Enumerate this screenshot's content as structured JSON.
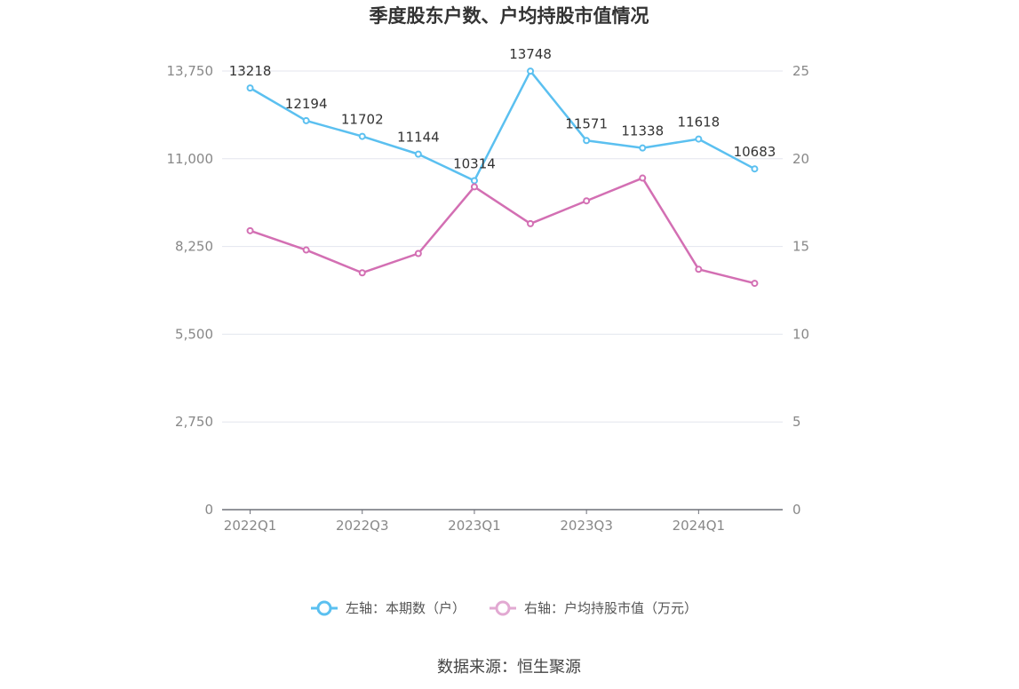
{
  "chart_data": {
    "type": "line",
    "title": "季度股东户数、户均持股市值情况",
    "categories": [
      "2022Q1",
      "2022Q2",
      "2022Q3",
      "2022Q4",
      "2023Q1",
      "2023Q2",
      "2023Q3",
      "2023Q4",
      "2024Q1",
      "2024Q2"
    ],
    "x_tick_labels": [
      "2022Q1",
      "2022Q3",
      "2023Q1",
      "2023Q3",
      "2024Q1"
    ],
    "series": [
      {
        "name": "左轴：本期数（户）",
        "axis": "left",
        "color": "#5bc0f0",
        "values": [
          13218,
          12194,
          11702,
          11144,
          10314,
          13748,
          11571,
          11338,
          11618,
          10683
        ],
        "data_labels": [
          "13218",
          "12194",
          "11702",
          "11144",
          "10314",
          "13748",
          "11571",
          "11338",
          "11618",
          "10683"
        ]
      },
      {
        "name": "右轴：户均持股市值（万元）",
        "axis": "right",
        "color": "#d36fb3",
        "values": [
          15.9,
          14.8,
          13.5,
          14.6,
          18.4,
          16.3,
          17.6,
          18.9,
          13.7,
          12.9
        ]
      }
    ],
    "left_axis": {
      "min": 0,
      "max": 13750,
      "ticks": [
        0,
        2750,
        5500,
        8250,
        11000,
        13750
      ],
      "tick_labels": [
        "0",
        "2,750",
        "5,500",
        "8,250",
        "11,000",
        "13,750"
      ]
    },
    "right_axis": {
      "min": 0,
      "max": 25,
      "ticks": [
        0,
        5,
        10,
        15,
        20,
        25
      ],
      "tick_labels": [
        "0",
        "5",
        "10",
        "15",
        "20",
        "25"
      ]
    },
    "grid": true,
    "legend_position": "bottom",
    "source": "数据来源：恒生聚源"
  }
}
